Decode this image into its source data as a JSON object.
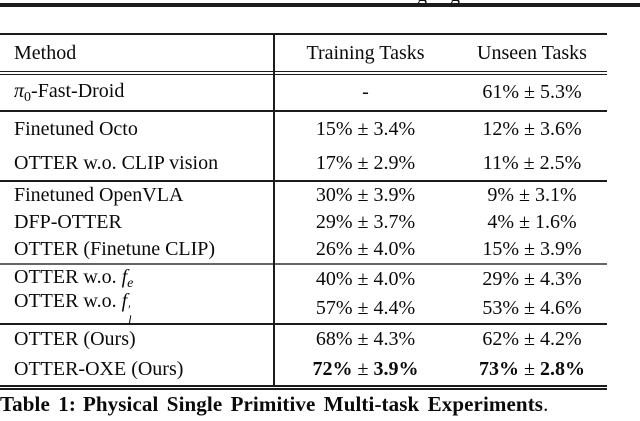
{
  "top_fragment": {
    "descenders": "g g"
  },
  "colors": {
    "rule": "#1c1c1c",
    "rule_light": "#666666",
    "text": "#0a0a0a"
  },
  "table": {
    "header": {
      "method": "Method",
      "training": "Training Tasks",
      "unseen": "Unseen Tasks"
    },
    "groups": [
      {
        "rows": [
          {
            "method": [
              {
                "t": "π",
                "it": true
              },
              {
                "t": "0",
                "sub": true
              },
              {
                "t": "-Fast-Droid"
              }
            ],
            "training": "-",
            "unseen": "61% ± 5.3%"
          }
        ]
      },
      {
        "rows": [
          {
            "method": [
              {
                "t": "Finetuned Octo"
              }
            ],
            "training": "15% ± 3.4%",
            "unseen": "12% ± 3.6%"
          },
          {
            "method": [
              {
                "t": "OTTER w.o. CLIP vision"
              }
            ],
            "training": "17% ± 2.9%",
            "unseen": "11% ± 2.5%"
          }
        ]
      },
      {
        "rows": [
          {
            "method": [
              {
                "t": "Finetuned OpenVLA"
              }
            ],
            "training": "30% ± 3.9%",
            "unseen": "9% ± 3.1%"
          },
          {
            "method": [
              {
                "t": "DFP-OTTER"
              }
            ],
            "training": "29% ± 3.7%",
            "unseen": "4% ± 1.6%"
          },
          {
            "method": [
              {
                "t": "OTTER (Finetune CLIP)"
              }
            ],
            "training": "26% ± 4.0%",
            "unseen": "15% ± 3.9%"
          }
        ]
      },
      {
        "rows": [
          {
            "method": [
              {
                "t": "OTTER w.o. "
              },
              {
                "t": "f",
                "it": true
              },
              {
                "t": "e",
                "sub": true,
                "it": true
              }
            ],
            "training": "40% ± 4.0%",
            "unseen": "29% ± 4.3%"
          },
          {
            "method": [
              {
                "t": "OTTER w.o. "
              },
              {
                "t": "f",
                "it": true
              },
              {
                "stack": {
                  "sup": "′",
                  "sub": "l"
                }
              }
            ],
            "training": "57% ± 4.4%",
            "unseen": "53% ± 4.6%"
          }
        ]
      },
      {
        "rows": [
          {
            "method": [
              {
                "t": "OTTER (Ours)"
              }
            ],
            "training": "68% ± 4.3%",
            "unseen": "62% ± 4.2%"
          },
          {
            "method": [
              {
                "t": "OTTER-OXE (Ours)"
              }
            ],
            "training": "72% ± 3.9%",
            "unseen": "73% ± 2.8%",
            "bold": true
          }
        ]
      }
    ]
  },
  "caption": {
    "label": "Table 1:",
    "text": "Physical Single Primitive Multi-task Experiments",
    "period": "."
  }
}
